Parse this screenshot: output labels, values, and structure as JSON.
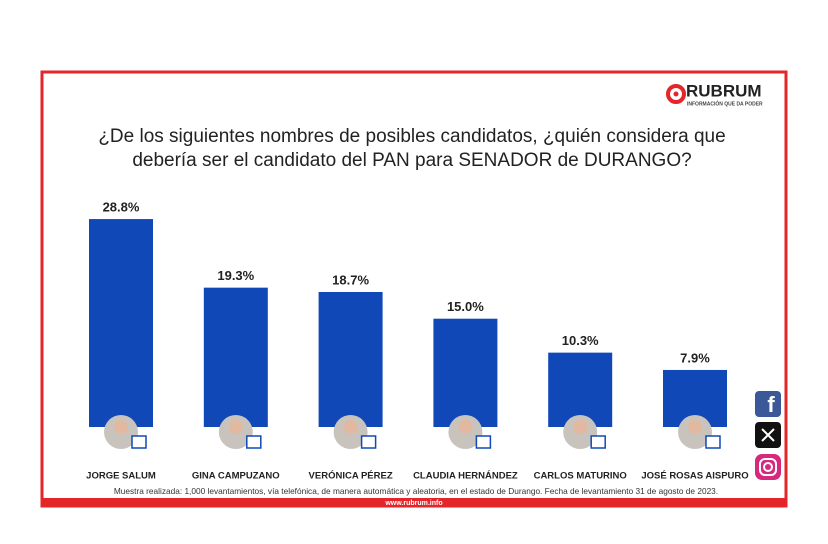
{
  "chart_data": {
    "type": "bar",
    "brand": "RUBRUM",
    "tagline": "INFORMACIÓN QUE DA PODER",
    "title": [
      "¿De los siguientes nombres de posibles candidatos, ¿quién considera que",
      "debería ser el candidato del PAN para SENADOR de DURANGO?"
    ],
    "categories": [
      "JORGE SALUM",
      "GINA CAMPUZANO",
      "VERÓNICA PÉREZ",
      "CLAUDIA HERNÁNDEZ",
      "CARLOS MATURINO",
      "JOSÉ ROSAS AISPURO"
    ],
    "values": [
      28.8,
      19.3,
      18.7,
      15.0,
      10.3,
      7.9
    ],
    "value_labels": [
      "28.8%",
      "19.3%",
      "18.7%",
      "15.0%",
      "10.3%",
      "7.9%"
    ],
    "color": "#1148b8",
    "note": "Muestra realizada: 1,000 levantamientos, vía telefónica, de manera automática y aleatoria, en el estado de Durango. Fecha de levantamiento 31 de agosto de 2023.",
    "website": "www.rubrum.info"
  }
}
